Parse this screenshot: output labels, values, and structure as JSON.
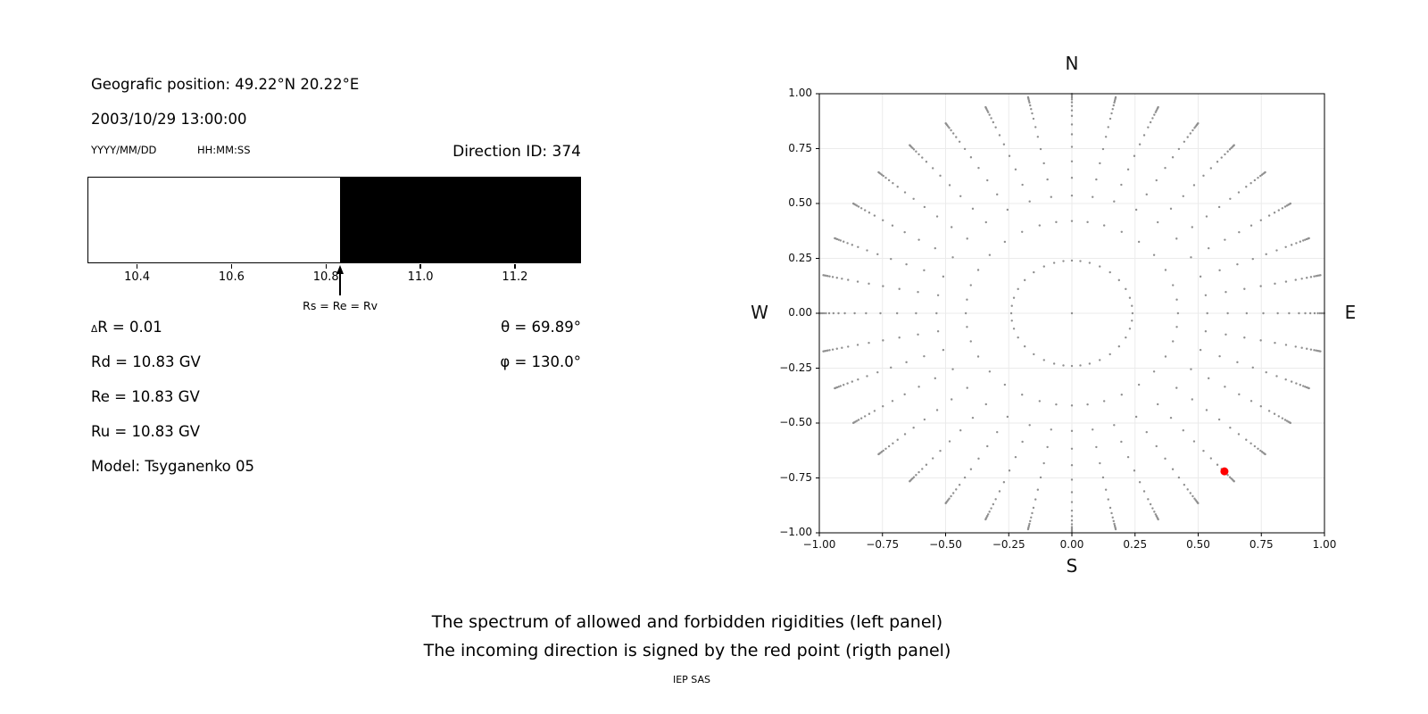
{
  "left_panel": {
    "geo_position": "Geografic position: 49.22°N 20.22°E",
    "datetime": "2003/10/29 13:00:00",
    "date_format_hint": "YYYY/MM/DD",
    "time_format_hint": "HH:MM:SS",
    "direction_id": "Direction ID: 374",
    "spectrum_bar": {
      "axis_min": 10.295,
      "axis_max": 11.34,
      "cutoff_value": 10.83,
      "allowed_color": "#ffffff",
      "forbidden_color": "#000000",
      "tick_values": [
        10.4,
        10.6,
        10.8,
        11.0,
        11.2
      ],
      "tick_labels": [
        "10.4",
        "10.6",
        "10.8",
        "11.0",
        "11.2"
      ],
      "arrow_label": "Rs = Re = Rv"
    },
    "params": {
      "delta_symbol": "Δ",
      "delta_r_rest": "R = 0.01",
      "rd": "Rd = 10.83 GV",
      "re": "Re = 10.83 GV",
      "ru": "Ru = 10.83 GV",
      "model": "Model: Tsyganenko 05",
      "theta": "θ = 69.89°",
      "phi": "φ = 130.0°"
    }
  },
  "chart_data": {
    "type": "scatter",
    "description": "Grid of incoming directions (36 azimuthal spokes of gray dots, tips on the unit circle, inner ring at r=0.24 and a center dot); the red point marks the incoming direction of ID 374",
    "compass": {
      "top": "N",
      "bottom": "S",
      "left": "W",
      "right": "E"
    },
    "xlim": [
      -1,
      1
    ],
    "ylim": [
      -1,
      1
    ],
    "tick_values": [
      -1,
      -0.75,
      -0.5,
      -0.25,
      0,
      0.25,
      0.5,
      0.75,
      1
    ],
    "tick_labels": [
      "−1.00",
      "−0.75",
      "−0.50",
      "−0.25",
      "0.00",
      "0.25",
      "0.50",
      "0.75",
      "1.00"
    ],
    "grid": true,
    "grid_color": "#ebebeb",
    "dot_color": "#8f8f8f",
    "spokes": {
      "azimuth_start_deg": 0,
      "azimuth_step_deg": 10,
      "count": 36,
      "dot_radii": [
        0.24,
        0.42,
        0.536,
        0.617,
        0.692,
        0.758,
        0.815,
        0.86,
        0.899,
        0.924,
        0.944,
        0.961,
        0.974,
        0.982,
        0.989,
        0.995,
        0.999
      ],
      "curvature_deg": 4
    },
    "center_dot": true,
    "red_point": {
      "x": 0.604,
      "y": -0.72,
      "color": "#ff0000"
    }
  },
  "footer": {
    "caption_line1": "The spectrum of allowed and forbidden rigidities (left panel)",
    "caption_line2": "The incoming direction is signed by the red point (rigth panel)",
    "credit": "IEP SAS"
  }
}
